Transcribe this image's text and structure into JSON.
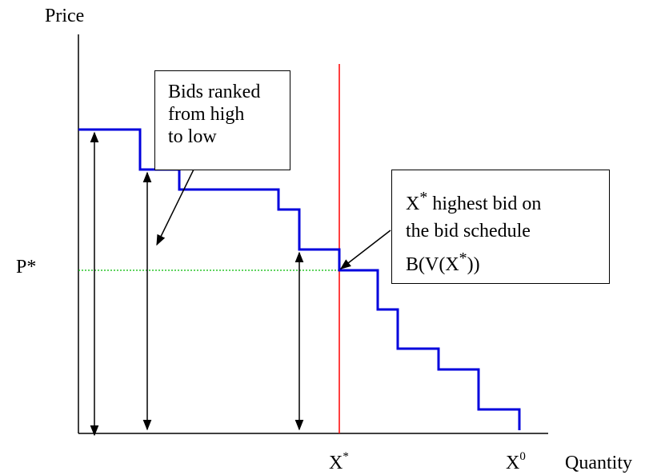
{
  "labels": {
    "y_axis": "Price",
    "x_axis": "Quantity",
    "p_star": "P*",
    "x_star_base": "X",
    "x_star_sup": "*",
    "x_zero_base": "X",
    "x_zero_sup": "0"
  },
  "boxes": {
    "bids_ranked": {
      "line1": "Bids ranked",
      "line2": "from high",
      "line3": "to low"
    },
    "highest_bid": {
      "line1_base": "X",
      "line1_sup": "*",
      "line1_rest": " highest bid on",
      "line2": "the bid schedule",
      "line3_pre": "B(V(X",
      "line3_sup": "*",
      "line3_post": "))"
    }
  },
  "colors": {
    "step_curve": "#0000dd",
    "x_star_line": "#ff0000",
    "p_star_line": "#00bb00",
    "axes": "#000000"
  }
}
